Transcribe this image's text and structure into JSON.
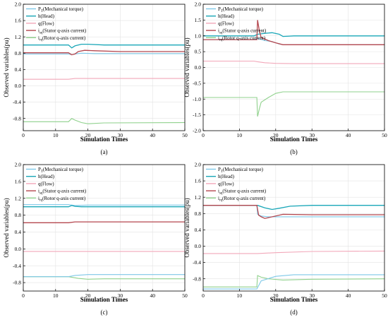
{
  "colors": {
    "torque": "#7ec8e8",
    "head": "#1aa7b8",
    "flow": "#f2a7b9",
    "stator": "#b5474f",
    "rotor": "#8fd18c",
    "grid": "#e3e3e3",
    "axis": "#000000"
  },
  "chart_data": [
    {
      "type": "line",
      "panel_label": "(a)",
      "xlabel": "Simulation Times",
      "ylabel": "Observed variables(pu)",
      "xlim": [
        0,
        50
      ],
      "ylim": [
        -1.1,
        2.0
      ],
      "xticks": [
        0,
        10,
        20,
        30,
        40,
        50
      ],
      "yticks": [
        -0.8,
        -0.4,
        0.0,
        0.4,
        0.8,
        1.2,
        1.6,
        2.0
      ],
      "ytick_labels": [
        "-0.8",
        "-0.4",
        "0.0",
        "0.4",
        "0.8",
        "1.2",
        "1.6",
        "2.0"
      ],
      "grid": true,
      "legend": "top-left",
      "series": [
        {
          "key": "torque",
          "name": "PT(Mechanical torque)",
          "name_main": "P",
          "name_sub": "T",
          "name_rest": "(Mechanical torque)",
          "x": [
            0,
            14,
            15,
            16,
            18,
            22,
            30,
            50
          ],
          "y": [
            0.78,
            0.78,
            0.76,
            0.78,
            0.8,
            0.79,
            0.79,
            0.79
          ]
        },
        {
          "key": "head",
          "name": "h(Head)",
          "name_main": "h(Head)",
          "x": [
            0,
            14,
            15,
            16,
            18,
            20,
            25,
            50
          ],
          "y": [
            1.0,
            1.0,
            0.93,
            0.98,
            1.02,
            1.02,
            1.0,
            1.0
          ]
        },
        {
          "key": "flow",
          "name": "q(Flow)",
          "name_main": "q(Flow)",
          "x": [
            0,
            14,
            16,
            20,
            50
          ],
          "y": [
            0.16,
            0.16,
            0.18,
            0.18,
            0.18
          ]
        },
        {
          "key": "stator",
          "name": "isq(Stator q-axis current)",
          "name_main": "i",
          "name_sub": "sq",
          "name_rest": "(Stator q-axis current)",
          "x": [
            0,
            14,
            15,
            16,
            17,
            19,
            22,
            30,
            50
          ],
          "y": [
            0.81,
            0.81,
            0.76,
            0.78,
            0.84,
            0.87,
            0.86,
            0.84,
            0.84
          ]
        },
        {
          "key": "rotor",
          "name": "irq(Rotor q-axis current)",
          "name_main": "i",
          "name_sub": "rq",
          "name_rest": "(Rotor q-axis current)",
          "x": [
            0,
            14,
            15,
            16,
            18,
            20,
            25,
            50
          ],
          "y": [
            -0.88,
            -0.88,
            -0.8,
            -0.84,
            -0.9,
            -0.93,
            -0.91,
            -0.9
          ]
        }
      ]
    },
    {
      "type": "line",
      "panel_label": "(b)",
      "xlabel": "Simulation Times",
      "ylabel": "Observed variables(pu)",
      "xlim": [
        0,
        50
      ],
      "ylim": [
        -2.0,
        2.0
      ],
      "xticks": [
        0,
        10,
        20,
        30,
        40,
        50
      ],
      "yticks": [
        -2.0,
        -1.5,
        -1.0,
        -0.5,
        0.0,
        0.5,
        1.0,
        1.5,
        2.0
      ],
      "ytick_labels": [
        "-2.0",
        "-1.5",
        "-1.0",
        "-0.5",
        "0.0",
        "0.5",
        "1.0",
        "1.5",
        "2.0"
      ],
      "grid": true,
      "legend": "top-left",
      "series": [
        {
          "key": "torque",
          "name": "PT(Mechanical torque)",
          "name_main": "P",
          "name_sub": "T",
          "name_rest": "(Mechanical torque)",
          "x": [
            0,
            14,
            15,
            17,
            19,
            21,
            22,
            25,
            50
          ],
          "y": [
            0.88,
            0.88,
            0.92,
            0.85,
            0.82,
            0.74,
            0.72,
            0.72,
            0.72
          ]
        },
        {
          "key": "head",
          "name": "h(Head)",
          "name_main": "h(Head)",
          "x": [
            0,
            14,
            15,
            17,
            19,
            21,
            22,
            25,
            50
          ],
          "y": [
            1.0,
            1.0,
            1.05,
            1.08,
            1.1,
            1.05,
            0.98,
            1.0,
            1.0
          ]
        },
        {
          "key": "flow",
          "name": "q(Flow)",
          "name_main": "q(Flow)",
          "x": [
            0,
            14,
            15,
            17,
            20,
            25,
            50
          ],
          "y": [
            0.2,
            0.2,
            0.18,
            0.15,
            0.13,
            0.12,
            0.12
          ]
        },
        {
          "key": "stator",
          "name": "isq(Stator q-axis current)",
          "name_main": "i",
          "name_sub": "sq",
          "name_rest": "(Stator q-axis current)",
          "x": [
            0,
            14.8,
            15,
            15.5,
            16,
            18,
            20,
            22,
            50
          ],
          "y": [
            0.88,
            0.88,
            1.5,
            1.15,
            0.95,
            0.85,
            0.78,
            0.72,
            0.72
          ]
        },
        {
          "key": "rotor",
          "name": "irq(Rotor q-axis current)",
          "name_main": "i",
          "name_sub": "rq",
          "name_rest": "(Rotor q-axis current)",
          "x": [
            0,
            14.8,
            15,
            15.5,
            16,
            18,
            20,
            22,
            50
          ],
          "y": [
            -0.95,
            -0.95,
            -1.55,
            -1.3,
            -1.1,
            -0.95,
            -0.82,
            -0.77,
            -0.77
          ]
        }
      ]
    },
    {
      "type": "line",
      "panel_label": "(c)",
      "xlabel": "Simulation Times",
      "ylabel": "Observed variables(pu)",
      "xlim": [
        0,
        50
      ],
      "ylim": [
        -1.0,
        2.0
      ],
      "xticks": [
        0,
        10,
        20,
        30,
        40,
        50
      ],
      "yticks": [
        -0.8,
        -0.4,
        0.0,
        0.4,
        0.8,
        1.2,
        1.6,
        2.0
      ],
      "ytick_labels": [
        "-0.8",
        "-0.4",
        "0.0",
        "0.4",
        "0.8",
        "1.2",
        "1.6",
        "2.0"
      ],
      "grid": true,
      "legend": "top-left",
      "series": [
        {
          "key": "torque",
          "name": "PT(Mechanical torque)",
          "name_main": "P",
          "name_sub": "T",
          "name_rest": "(Mechanical torque)",
          "x": [
            0,
            14,
            16,
            20,
            30,
            50
          ],
          "y": [
            1.05,
            1.05,
            1.03,
            1.04,
            1.04,
            1.04
          ]
        },
        {
          "key": "head",
          "name": "h(Head)",
          "name_main": "h(Head)",
          "x": [
            0,
            14,
            15,
            16,
            18,
            50
          ],
          "y": [
            1.0,
            1.0,
            1.03,
            1.01,
            1.0,
            1.0
          ]
        },
        {
          "key": "flow",
          "name": "q(Flow)",
          "name_main": "q(Flow)",
          "x": [
            0,
            50
          ],
          "y": [
            -0.06,
            -0.06
          ]
        },
        {
          "key": "stator",
          "name": "isq(Stator q-axis current)",
          "name_main": "i",
          "name_sub": "sq",
          "name_rest": "(Stator q-axis current)",
          "x": [
            0,
            14,
            16,
            20,
            50
          ],
          "y": [
            0.62,
            0.62,
            0.64,
            0.64,
            0.64
          ]
        },
        {
          "key": "rotor",
          "name": "irq(Rotor q-axis current)",
          "name_main": "i",
          "name_sub": "rq",
          "name_rest": "(Rotor q-axis current)",
          "x": [
            0,
            14,
            17,
            20,
            25,
            50
          ],
          "y": [
            -0.66,
            -0.66,
            -0.7,
            -0.72,
            -0.71,
            -0.71
          ]
        },
        {
          "key": "torque",
          "name": "PT(Mechanical torque)",
          "name_main": "P",
          "name_sub": "T",
          "name_rest": "(Mechanical torque)",
          "x": [
            0,
            14,
            16,
            20,
            25,
            50
          ],
          "y": [
            -0.66,
            -0.66,
            -0.63,
            -0.61,
            -0.61,
            -0.61
          ],
          "in_legend": false
        }
      ]
    },
    {
      "type": "line",
      "panel_label": "(d)",
      "xlabel": "Simulation Times",
      "ylabel": "Observed variables(pu)",
      "xlim": [
        0,
        50
      ],
      "ylim": [
        -1.1,
        2.0
      ],
      "xticks": [
        0,
        10,
        20,
        30,
        40,
        50
      ],
      "yticks": [
        -0.8,
        -0.4,
        0.0,
        0.4,
        0.8,
        1.2,
        1.6,
        2.0
      ],
      "ytick_labels": [
        "-0.8",
        "-0.4",
        "0.0",
        "0.4",
        "0.8",
        "1.2",
        "1.6",
        "2.0"
      ],
      "grid": true,
      "legend": "top-left",
      "series": [
        {
          "key": "torque",
          "name": "PT(Mechanical torque)",
          "name_main": "P",
          "name_sub": "T",
          "name_rest": "(Mechanical torque)",
          "x": [
            0,
            14.8,
            15,
            16,
            18,
            22,
            30,
            50
          ],
          "y": [
            1.0,
            1.0,
            0.78,
            0.74,
            0.72,
            0.72,
            0.72,
            0.72
          ]
        },
        {
          "key": "head",
          "name": "h(Head)",
          "name_main": "h(Head)",
          "x": [
            0,
            15,
            17,
            19,
            21,
            24,
            30,
            50
          ],
          "y": [
            1.0,
            1.0,
            0.94,
            0.9,
            0.93,
            0.98,
            1.0,
            1.0
          ]
        },
        {
          "key": "flow",
          "name": "q(Flow)",
          "name_main": "q(Flow)",
          "x": [
            0,
            15,
            20,
            30,
            50
          ],
          "y": [
            -0.18,
            -0.18,
            -0.16,
            -0.13,
            -0.12
          ]
        },
        {
          "key": "stator",
          "name": "isq(Stator q-axis current)",
          "name_main": "i",
          "name_sub": "sq",
          "name_rest": "(Stator q-axis current)",
          "x": [
            0,
            14.8,
            15.3,
            16,
            17,
            18,
            22,
            30,
            50
          ],
          "y": [
            1.0,
            1.0,
            0.76,
            0.72,
            0.68,
            0.7,
            0.78,
            0.77,
            0.77
          ]
        },
        {
          "key": "rotor",
          "name": "irq(Rotor q-axis current)",
          "name_main": "i",
          "name_sub": "rq",
          "name_rest": "(Rotor q-axis current)",
          "x": [
            0,
            14.8,
            15,
            16,
            18,
            22,
            30,
            50
          ],
          "y": [
            -1.0,
            -1.0,
            -0.72,
            -0.76,
            -0.8,
            -0.83,
            -0.81,
            -0.8
          ]
        },
        {
          "key": "torque",
          "name": "PT(Mechanical torque)",
          "name_main": "P",
          "name_sub": "T",
          "name_rest": "(Mechanical torque)",
          "x": [
            0,
            14.8,
            16,
            20,
            25,
            30,
            50
          ],
          "y": [
            -1.05,
            -1.05,
            -0.85,
            -0.74,
            -0.7,
            -0.7,
            -0.7
          ],
          "in_legend": false
        }
      ]
    }
  ]
}
